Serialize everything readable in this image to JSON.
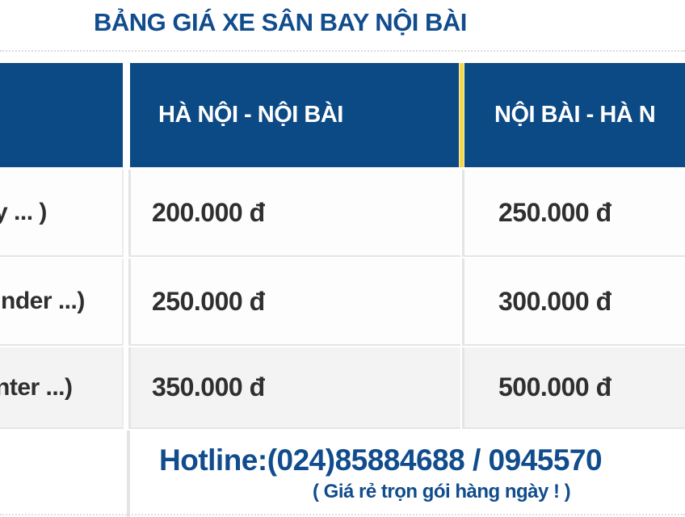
{
  "title": "BẢNG GIÁ XE SÂN BAY NỘI BÀI",
  "table": {
    "header": {
      "route1": "HÀ NỘI - NỘI BÀI",
      "route2": "NỘI BÀI - HÀ N"
    },
    "rows": [
      {
        "vehicle": "y ... )",
        "route1_price": "200.000 đ",
        "route2_price": "250.000 đ"
      },
      {
        "vehicle": "nder ...)",
        "route1_price": "250.000 đ",
        "route2_price": "300.000 đ"
      },
      {
        "vehicle": "nter ...)",
        "route1_price": "350.000 đ",
        "route2_price": "500.000 đ"
      }
    ]
  },
  "footer": {
    "hotline": "Hotline:(024)85884688 / 0945570",
    "note": "( Giá rẻ trọn gói hàng ngày ! )"
  },
  "colors": {
    "header_bg": "#0c4a85",
    "accent_yellow": "#f5d74b",
    "text_blue": "#114c8d",
    "price_text": "#2f2f2f",
    "row_alt_bg": "#f3f3f3",
    "border_gray": "#e4e4e4"
  }
}
